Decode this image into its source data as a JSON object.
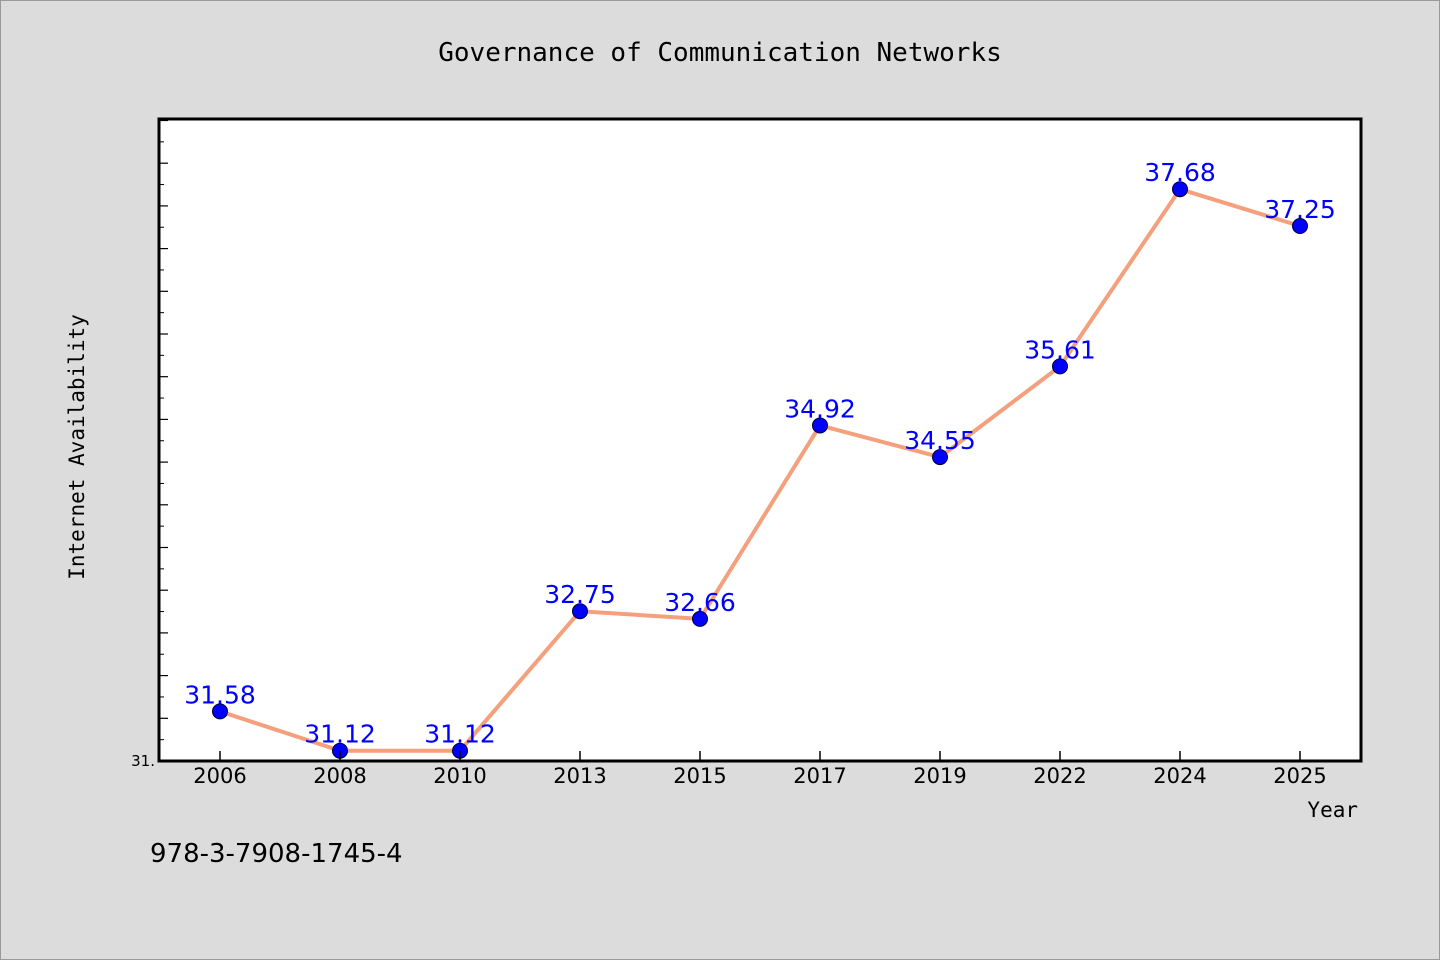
{
  "footer_id": "978-3-7908-1745-4",
  "colors": {
    "background": "#dcdcdc",
    "plot_background": "#ffffff",
    "line": "#f4a07c",
    "marker": "#0000ff",
    "data_label": "#0000ff",
    "axis": "#000000"
  },
  "chart_data": {
    "type": "line",
    "title": "Governance of Communication Networks",
    "xlabel": "Year",
    "ylabel": "Internet Availability",
    "categories": [
      "2006",
      "2008",
      "2010",
      "2013",
      "2015",
      "2017",
      "2019",
      "2022",
      "2024",
      "2025"
    ],
    "series": [
      {
        "values": [
          31.58,
          31.12,
          31.12,
          32.75,
          32.66,
          34.92,
          34.55,
          35.61,
          37.68,
          37.25
        ],
        "labels": [
          "31.58",
          "31.12",
          "31.12",
          "32.75",
          "32.66",
          "34.92",
          "34.55",
          "35.61",
          "37.68",
          "37.25"
        ]
      }
    ],
    "ylim": [
      31.0,
      38.5
    ],
    "yticks": [
      {
        "value": 31.0,
        "label": "31."
      }
    ],
    "grid": false,
    "legend": "none"
  }
}
